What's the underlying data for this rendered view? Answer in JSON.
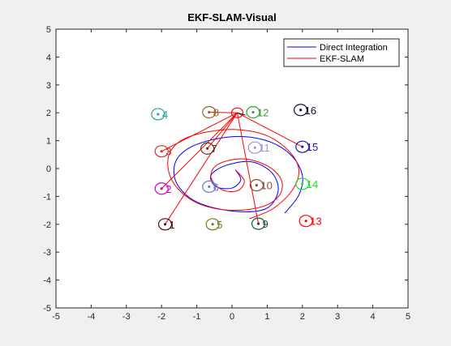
{
  "figure": {
    "background": "#f0f0f0",
    "plot_background": "#ffffff"
  },
  "chart_data": {
    "type": "line",
    "title": "EKF-SLAM-Visual",
    "xlabel": "",
    "ylabel": "",
    "xlim": [
      -5,
      5
    ],
    "ylim": [
      -5,
      5
    ],
    "xticks": [
      -5,
      -4,
      -3,
      -2,
      -1,
      0,
      1,
      2,
      3,
      4,
      5
    ],
    "yticks": [
      -5,
      -4,
      -3,
      -2,
      -1,
      0,
      1,
      2,
      3,
      4,
      5
    ],
    "grid": false,
    "legend_position": "top-right",
    "series": [
      {
        "name": "Direct Integration",
        "color": "#0000ff",
        "x": [
          0.1,
          0.25,
          0.0,
          -0.45,
          -0.6,
          -0.2,
          0.5,
          1.05,
          1.3,
          1.25,
          0.95,
          0.3,
          -0.55,
          -1.2,
          -1.6,
          -1.6,
          -1.2,
          -0.5,
          0.3,
          1.1,
          1.7,
          2.0,
          1.9,
          1.5
        ],
        "y": [
          -0.05,
          -0.4,
          -0.7,
          -0.65,
          -0.25,
          0.1,
          0.25,
          -0.05,
          -0.55,
          -1.05,
          -1.45,
          -1.55,
          -1.4,
          -1.05,
          -0.45,
          0.25,
          0.75,
          1.05,
          1.15,
          0.95,
          0.45,
          -0.25,
          -0.95,
          -1.6
        ]
      },
      {
        "name": "EKF-SLAM",
        "color": "#ff0000",
        "x": [
          0.1,
          0.35,
          0.15,
          -0.3,
          -0.6,
          -0.4,
          0.3,
          1.0,
          1.4,
          1.35,
          0.9,
          0.1,
          -0.75,
          -1.35,
          -1.75,
          -1.8,
          -1.45,
          -0.75,
          0.1,
          0.95,
          1.6,
          1.9,
          1.7,
          1.15,
          0.5
        ],
        "y": [
          -0.05,
          -0.45,
          -0.8,
          -0.75,
          -0.3,
          0.15,
          0.35,
          0.1,
          -0.4,
          -0.95,
          -1.35,
          -1.5,
          -1.35,
          -0.95,
          -0.3,
          0.45,
          1.0,
          1.3,
          1.4,
          1.2,
          0.65,
          -0.05,
          -0.8,
          -1.45,
          -1.8
        ]
      }
    ],
    "robot": {
      "x": 0.15,
      "y": 2.0,
      "color": "#ff0000",
      "arrow_color": "#000000"
    },
    "observation_color": "#ff0000",
    "observed_landmarks": [
      1,
      2,
      3,
      7,
      8,
      9,
      15
    ],
    "landmarks": [
      {
        "id": "1",
        "x": -1.9,
        "y": -2.0,
        "color": "#4d0f0f"
      },
      {
        "id": "2",
        "x": -2.0,
        "y": -0.72,
        "color": "#cc00cc"
      },
      {
        "id": "3",
        "x": -2.0,
        "y": 0.62,
        "color": "#cc3333"
      },
      {
        "id": "4",
        "x": -2.1,
        "y": 1.95,
        "color": "#2ca0a0"
      },
      {
        "id": "5",
        "x": -0.55,
        "y": -2.0,
        "color": "#7a7a14"
      },
      {
        "id": "6",
        "x": -0.65,
        "y": -0.65,
        "color": "#6677cc"
      },
      {
        "id": "7",
        "x": -0.7,
        "y": 0.72,
        "color": "#5a3a1a"
      },
      {
        "id": "8",
        "x": -0.65,
        "y": 2.02,
        "color": "#8a6a2a"
      },
      {
        "id": "9",
        "x": 0.75,
        "y": -1.98,
        "color": "#1f4f3a"
      },
      {
        "id": "10",
        "x": 0.7,
        "y": -0.6,
        "color": "#8a4d3a"
      },
      {
        "id": "11",
        "x": 0.65,
        "y": 0.75,
        "color": "#9999cc"
      },
      {
        "id": "12",
        "x": 0.6,
        "y": 2.02,
        "color": "#3a9a3a"
      },
      {
        "id": "13",
        "x": 2.1,
        "y": -1.88,
        "color": "#ff0000"
      },
      {
        "id": "14",
        "x": 2.0,
        "y": -0.55,
        "color": "#22dd22"
      },
      {
        "id": "15",
        "x": 2.0,
        "y": 0.78,
        "color": "#1a1aaa"
      },
      {
        "id": "16",
        "x": 1.95,
        "y": 2.1,
        "color": "#111133"
      }
    ]
  }
}
